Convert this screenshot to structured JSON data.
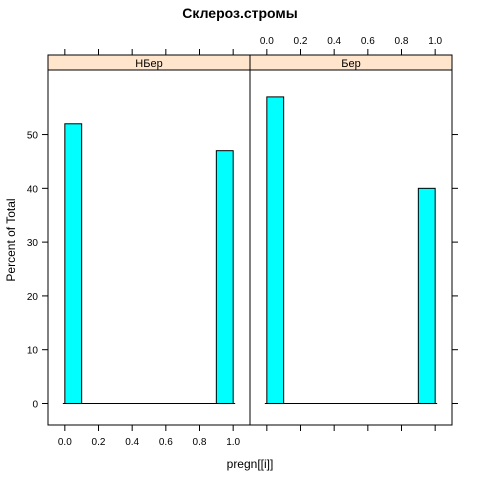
{
  "chart_data": {
    "type": "histogram",
    "title": "Склероз.стромы",
    "xlabel": "pregn[[i]]",
    "ylabel": "Percent of Total",
    "xlim": [
      -0.1,
      1.1
    ],
    "ylim": [
      -4,
      62
    ],
    "x_ticks": [
      "0.0",
      "0.2",
      "0.4",
      "0.6",
      "0.8",
      "1.0"
    ],
    "x_tick_values": [
      0,
      0.2,
      0.4,
      0.6,
      0.8,
      1.0
    ],
    "y_ticks": [
      "0",
      "10",
      "20",
      "30",
      "40",
      "50"
    ],
    "y_tick_values": [
      0,
      10,
      20,
      30,
      40,
      50
    ],
    "bar_color": "#00ffff",
    "strip_color": "#ffe5cc",
    "panels": [
      {
        "strip_label": "НБер",
        "bars": [
          {
            "x0": 0.0,
            "x1": 0.1,
            "value": 52
          },
          {
            "x0": 0.9,
            "x1": 1.0,
            "value": 47
          }
        ]
      },
      {
        "strip_label": "Бер",
        "bars": [
          {
            "x0": 0.0,
            "x1": 0.1,
            "value": 57
          },
          {
            "x0": 0.9,
            "x1": 1.0,
            "value": 40
          }
        ]
      }
    ]
  }
}
